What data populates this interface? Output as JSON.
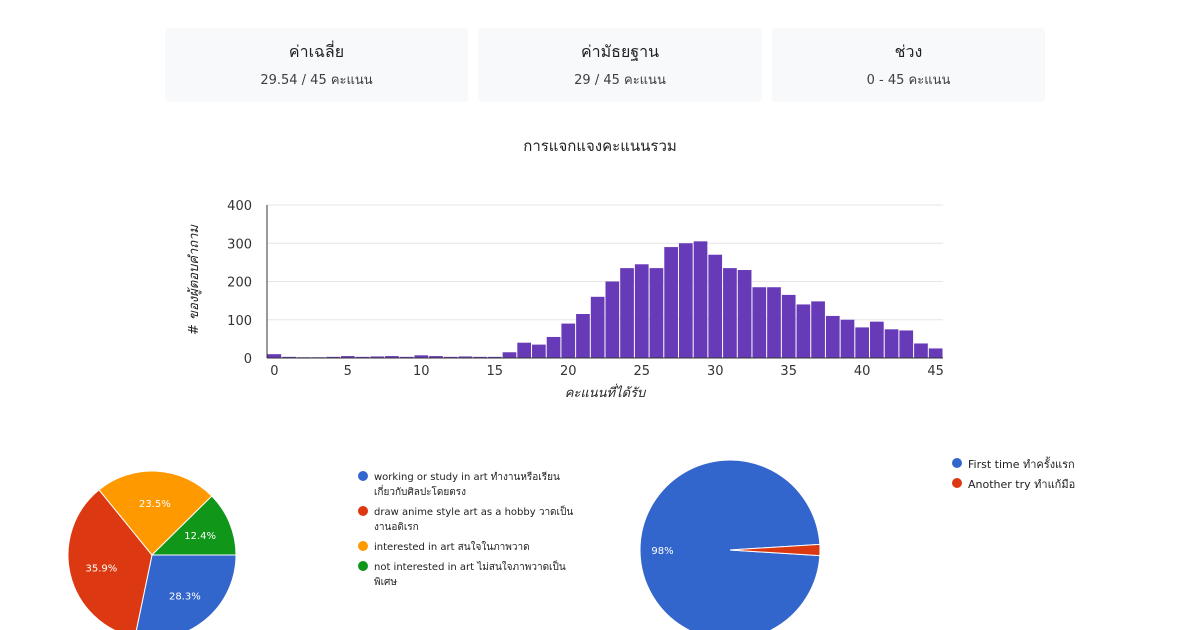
{
  "stats": {
    "mean": {
      "label": "ค่าเฉลี่ย",
      "value": "29.54 / 45 คะแนน"
    },
    "median": {
      "label": "ค่ามัธยฐาน",
      "value": "29 / 45 คะแนน"
    },
    "range": {
      "label": "ช่วง",
      "value": "0 - 45 คะแนน"
    }
  },
  "chart_data": [
    {
      "type": "bar",
      "title": "การแจกแจงคะแนนรวม",
      "xlabel": "คะแนนที่ได้รับ",
      "ylabel": "# ของผู้ตอบคำถาม",
      "x": [
        0,
        1,
        2,
        3,
        4,
        5,
        6,
        7,
        8,
        9,
        10,
        11,
        12,
        13,
        14,
        15,
        16,
        17,
        18,
        19,
        20,
        21,
        22,
        23,
        24,
        25,
        26,
        27,
        28,
        29,
        30,
        31,
        32,
        33,
        34,
        35,
        36,
        37,
        38,
        39,
        40,
        41,
        42,
        43,
        44,
        45
      ],
      "values": [
        10,
        3,
        2,
        2,
        3,
        5,
        3,
        4,
        5,
        3,
        7,
        5,
        3,
        4,
        3,
        3,
        15,
        40,
        35,
        55,
        90,
        115,
        160,
        200,
        235,
        245,
        235,
        290,
        300,
        305,
        270,
        235,
        230,
        185,
        185,
        165,
        140,
        148,
        110,
        100,
        80,
        95,
        75,
        72,
        38,
        25
      ],
      "ylim": [
        0,
        400
      ],
      "yticks": [
        "0",
        "100",
        "200",
        "300",
        "400"
      ],
      "xticks": [
        "0",
        "5",
        "10",
        "15",
        "20",
        "25",
        "30",
        "35",
        "40",
        "45"
      ],
      "color": "#673ab7",
      "grid": true
    },
    {
      "type": "pie",
      "labels": [
        "working or study in art ทำงานหรือเรียนเกี่ยวกับศิลปะโดยตรง",
        "draw anime style art as a hobby วาดเป็นงานอดิเรก",
        "interested in art สนใจในภาพวาด",
        "not interested in art ไม่สนใจภาพวาดเป็นพิเศษ"
      ],
      "values": [
        28.3,
        35.9,
        23.5,
        12.4
      ],
      "value_labels": [
        "28.3%",
        "35.9%",
        "23.5%",
        "12.4%"
      ],
      "colors": [
        "#3366cc",
        "#dc3912",
        "#ff9900",
        "#109618"
      ],
      "legend_position": "right"
    },
    {
      "type": "pie",
      "labels": [
        "First time ทำครั้งแรก",
        "Another try ทำแก้มือ"
      ],
      "values": [
        98,
        2
      ],
      "value_labels": [
        "98%",
        ""
      ],
      "colors": [
        "#3366cc",
        "#dc3912"
      ],
      "legend_position": "right"
    }
  ]
}
